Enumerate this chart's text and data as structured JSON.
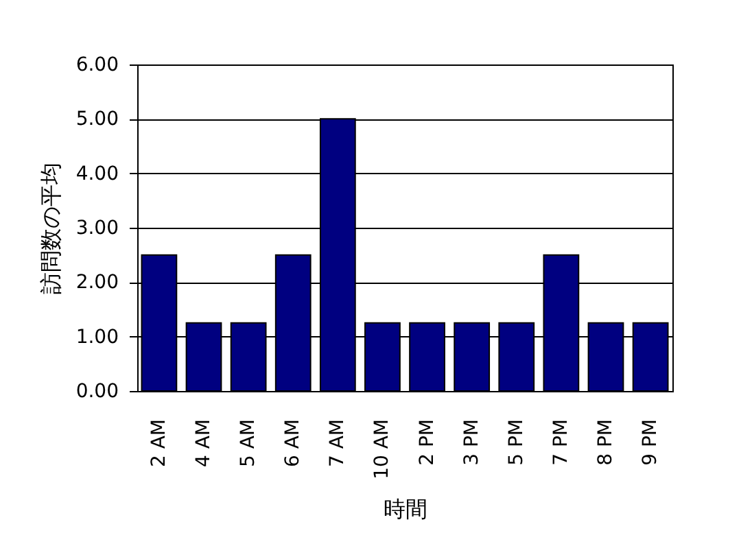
{
  "chart_data": {
    "type": "bar",
    "xlabel": "時間",
    "ylabel": "訪問数の平均",
    "categories": [
      "2 AM",
      "4 AM",
      "5 AM",
      "6 AM",
      "7 AM",
      "10 AM",
      "2 PM",
      "3 PM",
      "5 PM",
      "7 PM",
      "8 PM",
      "9 PM"
    ],
    "values": [
      2.5,
      1.25,
      1.25,
      2.5,
      5,
      1.25,
      1.25,
      1.25,
      1.25,
      2.5,
      1.25,
      1.25
    ],
    "color": "#000080",
    "ylim": [
      0,
      6
    ],
    "yticks": [
      {
        "value": 0,
        "label": "0.00"
      },
      {
        "value": 1,
        "label": "1.00"
      },
      {
        "value": 2,
        "label": "2.00"
      },
      {
        "value": 3,
        "label": "3.00"
      },
      {
        "value": 4,
        "label": "4.00"
      },
      {
        "value": 5,
        "label": "5.00"
      },
      {
        "value": 6,
        "label": "6.00"
      }
    ],
    "grid": "y"
  }
}
